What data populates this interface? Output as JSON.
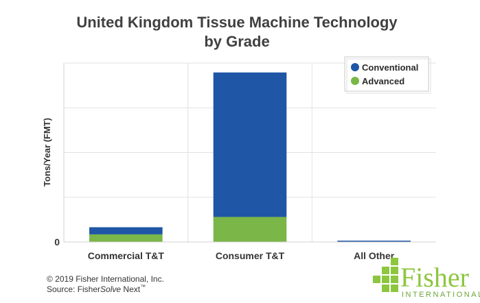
{
  "chart_data": {
    "type": "bar",
    "stacked": true,
    "title": "United Kingdom Tissue Machine Technology by Grade",
    "title_lines": [
      "United Kingdom Tissue Machine Technology",
      "by Grade"
    ],
    "xlabel": "",
    "ylabel": "Tons/Year (FMT)",
    "categories": [
      "Commercial T&T",
      "Consumer T&T",
      "All Other"
    ],
    "series": [
      {
        "name": "Advanced",
        "color": "#7ab648",
        "values": [
          17,
          56,
          0
        ]
      },
      {
        "name": "Conventional",
        "color": "#1f56a5",
        "values": [
          16,
          323,
          3
        ]
      }
    ],
    "ylim": [
      0,
      400
    ],
    "yticks": [
      0,
      100,
      200,
      300,
      400
    ],
    "ytick_labels": [
      "0",
      "",
      "",
      "",
      ""
    ],
    "grid": true,
    "legend": "top-right",
    "legend_order": [
      "Conventional",
      "Advanced"
    ]
  },
  "footer": {
    "copyright": "© 2019 Fisher International, Inc.",
    "source_prefix": "Source: Fisher",
    "source_italic": "Solve",
    "source_suffix": " Next",
    "source_tm": "™"
  },
  "logo": {
    "word": "Fisher",
    "sub": "INTERNATIONAL",
    "mark_color": "#8dc63f"
  }
}
